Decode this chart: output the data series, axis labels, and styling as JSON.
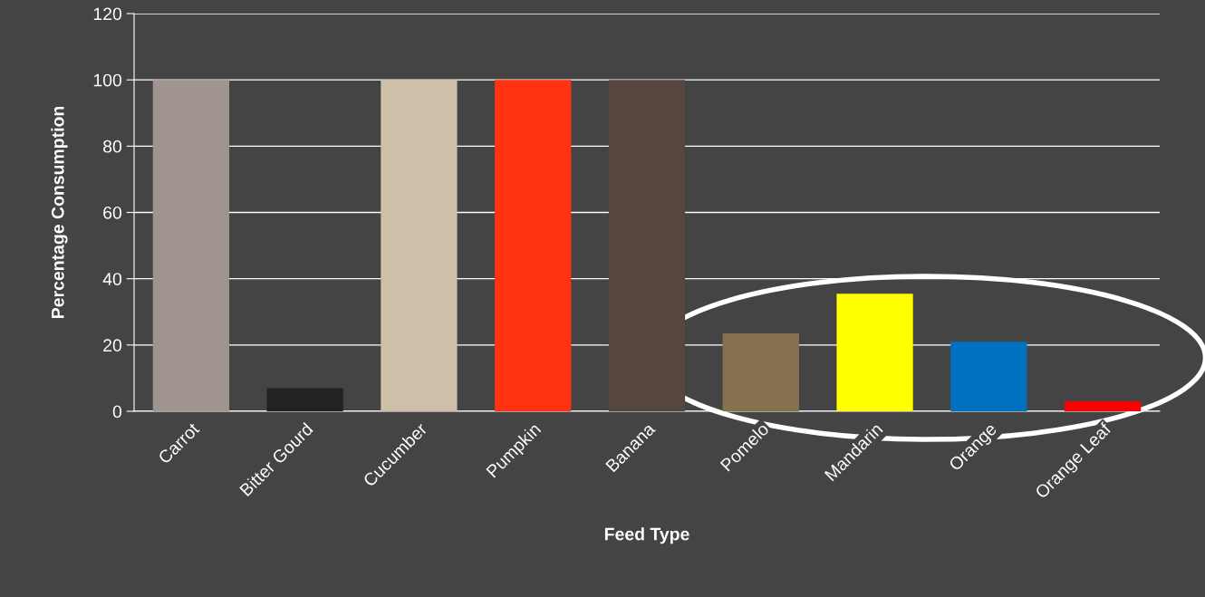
{
  "chart_data": {
    "type": "bar",
    "xlabel": "Feed Type",
    "ylabel": "Percentage Consumption",
    "categories": [
      "Carrot",
      "Bitter Gourd",
      "Cucumber",
      "Pumpkin",
      "Banana",
      "Pomelo",
      "Mandarin",
      "Orange",
      "Orange Leaf"
    ],
    "values": [
      100,
      7,
      100,
      100,
      100,
      23.5,
      35.5,
      21,
      3
    ],
    "colors": [
      "#a0958e",
      "#222222",
      "#cdbfa8",
      "#ff3311",
      "#554740",
      "#85714d",
      "#ffff00",
      "#0070c0",
      "#ff0000"
    ],
    "ylim": [
      0,
      120
    ],
    "yticks": [
      0,
      20,
      40,
      60,
      80,
      100,
      120
    ],
    "grid": "y",
    "legend": false
  }
}
